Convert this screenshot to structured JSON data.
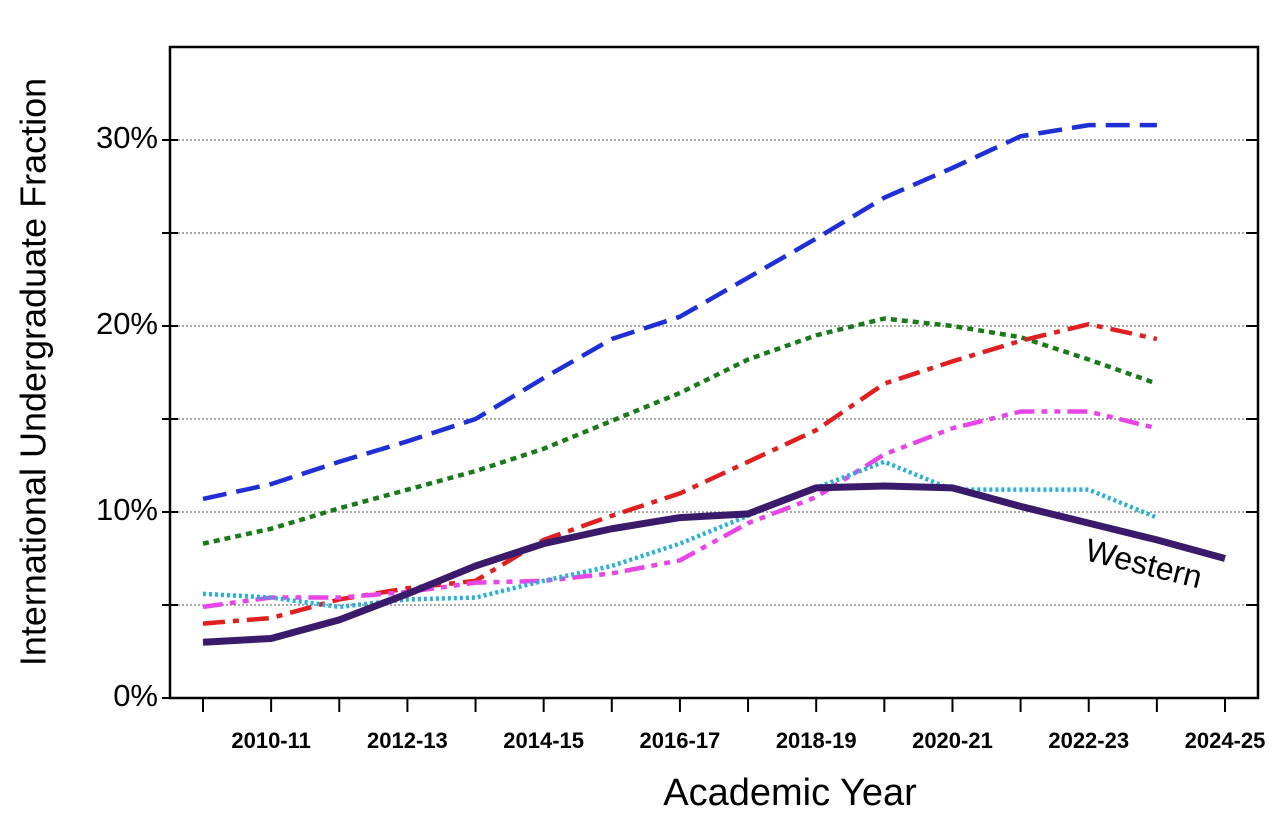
{
  "chart_data": {
    "type": "line",
    "ylabel": "International Undergraduate Fraction",
    "xlabel": "Academic Year",
    "categories": [
      null,
      "2010-11",
      null,
      "2012-13",
      null,
      "2014-15",
      null,
      "2016-17",
      null,
      "2018-19",
      null,
      "2020-21",
      null,
      "2022-23",
      null,
      "2024-25"
    ],
    "ylim": [
      0,
      35
    ],
    "yticks": [
      {
        "value": 0,
        "label": "0%"
      },
      {
        "value": 10,
        "label": "10%"
      },
      {
        "value": 20,
        "label": "20%"
      },
      {
        "value": 30,
        "label": "30%"
      }
    ],
    "minor_yticks": [
      5,
      15,
      25
    ],
    "grid": true,
    "series": [
      {
        "color": "#1f2fd6",
        "linestyle": "dashed",
        "values": [
          10.7,
          11.5,
          12.7,
          13.8,
          15.0,
          17.2,
          19.3,
          20.5,
          22.6,
          24.7,
          26.9,
          28.5,
          30.2,
          30.8,
          30.8,
          null
        ]
      },
      {
        "color": "#1a7a1a",
        "linestyle": "dotted",
        "values": [
          8.3,
          9.1,
          10.2,
          11.2,
          12.2,
          13.4,
          14.9,
          16.4,
          18.2,
          19.5,
          20.4,
          20.0,
          19.4,
          18.2,
          16.9,
          null
        ]
      },
      {
        "color": "#e02020",
        "linestyle": "dashdot",
        "values": [
          4.0,
          4.3,
          5.3,
          5.9,
          6.3,
          8.5,
          9.8,
          11.0,
          12.7,
          14.4,
          16.9,
          18.1,
          19.2,
          20.1,
          19.3,
          null
        ]
      },
      {
        "color": "#e845e8",
        "linestyle": "dashdotdot",
        "values": [
          4.9,
          5.4,
          5.4,
          5.7,
          6.2,
          6.3,
          6.7,
          7.4,
          9.4,
          10.8,
          13.1,
          14.5,
          15.4,
          15.4,
          14.5,
          null
        ]
      },
      {
        "color": "#2ab0d8",
        "linestyle": "finedotted",
        "values": [
          5.6,
          5.4,
          4.9,
          5.3,
          5.4,
          6.3,
          7.1,
          8.3,
          9.8,
          11.3,
          12.7,
          11.2,
          11.2,
          11.2,
          9.7,
          null
        ]
      },
      {
        "name": "Western",
        "color": "#3a1a6a",
        "linestyle": "solid",
        "values": [
          3.0,
          3.2,
          4.2,
          5.6,
          7.1,
          8.3,
          9.1,
          9.7,
          9.9,
          11.3,
          11.4,
          11.3,
          10.3,
          9.4,
          8.5,
          7.5
        ]
      }
    ]
  }
}
